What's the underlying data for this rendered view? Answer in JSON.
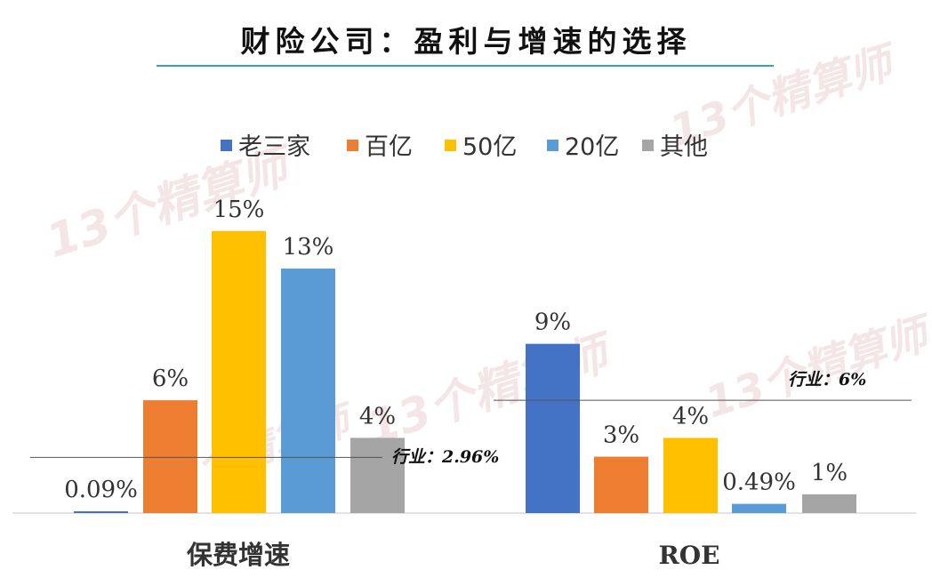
{
  "chart_data": {
    "type": "bar",
    "title": "财险公司：盈利与增速的选择",
    "legend": [
      "老三家",
      "百亿",
      "50亿",
      "20亿",
      "其他"
    ],
    "colors": [
      "#4472c4",
      "#ed7d31",
      "#ffc000",
      "#5b9bd5",
      "#a5a5a5"
    ],
    "legend_position": "top",
    "grid": false,
    "groups": [
      {
        "category": "保费增速",
        "values": [
          0.09,
          6,
          15,
          13,
          4
        ],
        "labels": [
          "0.09%",
          "6%",
          "15%",
          "13%",
          "4%"
        ],
        "reference": {
          "label": "行业：2.96%",
          "value": 2.96
        }
      },
      {
        "category": "ROE",
        "values": [
          9,
          3,
          4,
          0.49,
          1
        ],
        "labels": [
          "9%",
          "3%",
          "4%",
          "0.49%",
          "1%"
        ],
        "reference": {
          "label": "行业：6%",
          "value": 6
        }
      }
    ]
  },
  "watermark": "13个精算师"
}
